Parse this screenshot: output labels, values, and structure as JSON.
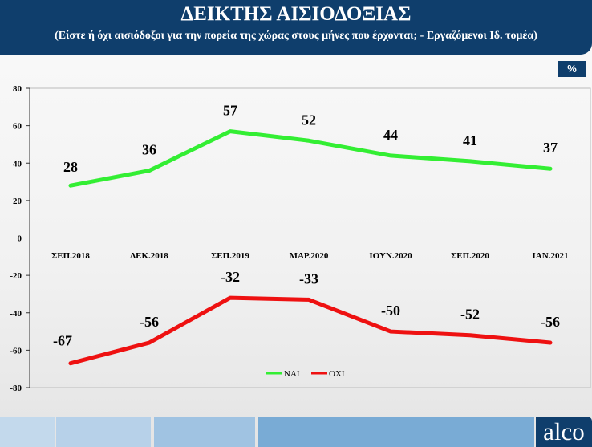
{
  "header": {
    "title": "ΔΕΙΚΤΗΣ ΑΙΣΙΟΔΟΞΙΑΣ",
    "subtitle": "(Είστε ή όχι αισιόδοξοι για την πορεία της χώρας στους  μήνες που έρχονται; - Εργαζόμενοι Ιδ. τομέα)"
  },
  "unit_badge": "%",
  "logo": "alco",
  "chart_data": {
    "type": "line",
    "categories": [
      "ΣΕΠ.2018",
      "ΔΕΚ.2018",
      "ΣΕΠ.2019",
      "ΜΑΡ.2020",
      "ΙΟΥΝ.2020",
      "ΣΕΠ.2020",
      "ΙΑΝ.2021"
    ],
    "series": [
      {
        "name": "ΝΑΙ",
        "color": "#33ee33",
        "values": [
          28,
          36,
          57,
          52,
          44,
          41,
          37
        ]
      },
      {
        "name": "ΟΧΙ",
        "color": "#ee1111",
        "values": [
          -67,
          -56,
          -32,
          -33,
          -50,
          -52,
          -56
        ]
      }
    ],
    "yticks": [
      80,
      60,
      40,
      20,
      0,
      -20,
      -40,
      -60,
      -80
    ],
    "ylim": [
      -80,
      80
    ],
    "legend": "bottom-center",
    "grid": false
  }
}
